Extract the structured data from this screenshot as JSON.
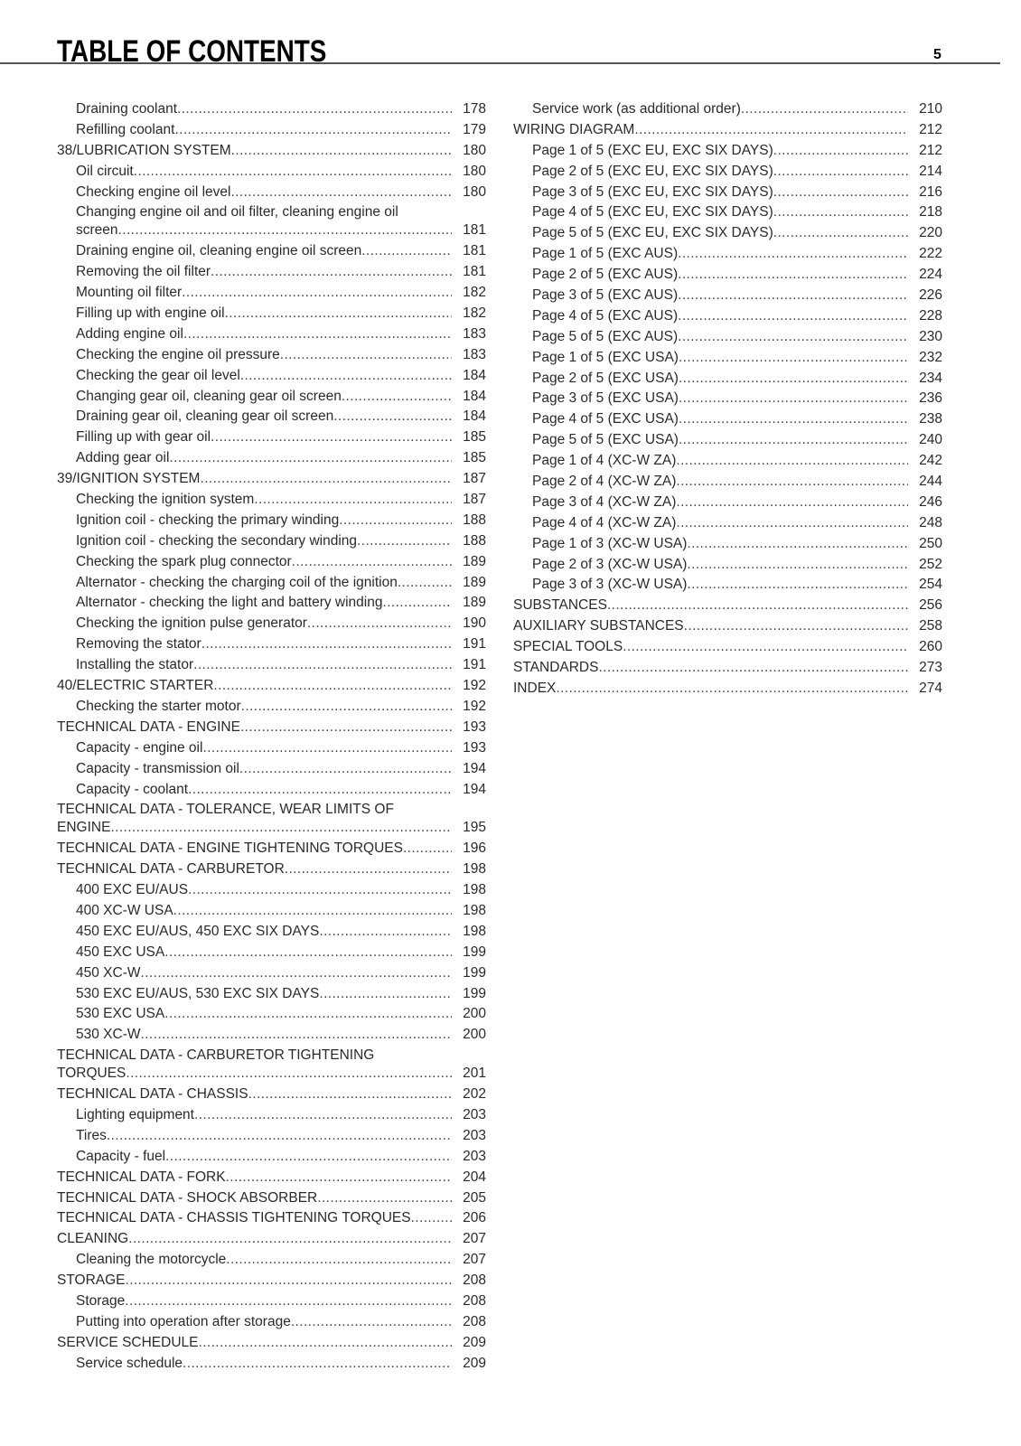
{
  "header": {
    "title": "TABLE OF CONTENTS",
    "page_number": "5"
  },
  "left": [
    {
      "level": 2,
      "title": "Draining coolant",
      "page": "178"
    },
    {
      "level": 2,
      "title": "Refilling coolant",
      "page": "179"
    },
    {
      "level": 1,
      "title": "38/LUBRICATION SYSTEM",
      "page": "180"
    },
    {
      "level": 2,
      "title": "Oil circuit",
      "page": "180"
    },
    {
      "level": 2,
      "title": "Checking engine oil level",
      "page": "180"
    },
    {
      "level": 2,
      "first_line": "Changing engine oil and oil filter, cleaning engine oil",
      "title": "screen",
      "page": "181"
    },
    {
      "level": 2,
      "title": "Draining engine oil, cleaning engine oil screen",
      "page": "181"
    },
    {
      "level": 2,
      "title": "Removing the oil filter",
      "page": "181"
    },
    {
      "level": 2,
      "title": "Mounting oil filter",
      "page": "182"
    },
    {
      "level": 2,
      "title": "Filling up with engine oil",
      "page": "182"
    },
    {
      "level": 2,
      "title": "Adding engine oil",
      "page": "183"
    },
    {
      "level": 2,
      "title": "Checking the engine oil pressure",
      "page": "183"
    },
    {
      "level": 2,
      "title": "Checking the gear oil level",
      "page": "184"
    },
    {
      "level": 2,
      "title": "Changing gear oil, cleaning gear oil screen",
      "page": "184"
    },
    {
      "level": 2,
      "title": "Draining gear oil, cleaning gear oil screen",
      "page": "184"
    },
    {
      "level": 2,
      "title": "Filling up with gear oil",
      "page": "185"
    },
    {
      "level": 2,
      "title": "Adding gear oil",
      "page": "185"
    },
    {
      "level": 1,
      "title": "39/IGNITION SYSTEM",
      "page": "187"
    },
    {
      "level": 2,
      "title": "Checking the ignition system",
      "page": "187"
    },
    {
      "level": 2,
      "title": "Ignition coil - checking the primary winding",
      "page": "188"
    },
    {
      "level": 2,
      "title": "Ignition coil - checking the secondary winding",
      "page": "188"
    },
    {
      "level": 2,
      "title": "Checking the spark plug connector",
      "page": "189"
    },
    {
      "level": 2,
      "title": "Alternator - checking the charging coil of the ignition",
      "page": "189"
    },
    {
      "level": 2,
      "title": "Alternator - checking the light and battery winding",
      "page": "189"
    },
    {
      "level": 2,
      "title": "Checking the ignition pulse generator",
      "page": "190"
    },
    {
      "level": 2,
      "title": "Removing the stator",
      "page": "191"
    },
    {
      "level": 2,
      "title": "Installing the stator",
      "page": "191"
    },
    {
      "level": 1,
      "title": "40/ELECTRIC STARTER",
      "page": "192"
    },
    {
      "level": 2,
      "title": "Checking the starter motor",
      "page": "192"
    },
    {
      "level": 1,
      "title": "TECHNICAL DATA - ENGINE",
      "page": "193"
    },
    {
      "level": 2,
      "title": "Capacity - engine oil",
      "page": "193"
    },
    {
      "level": 2,
      "title": "Capacity - transmission oil",
      "page": "194"
    },
    {
      "level": 2,
      "title": "Capacity - coolant",
      "page": "194"
    },
    {
      "level": 1,
      "first_line": "TECHNICAL DATA - TOLERANCE, WEAR LIMITS OF",
      "title": "ENGINE",
      "page": "195"
    },
    {
      "level": 1,
      "title": "TECHNICAL DATA - ENGINE TIGHTENING TORQUES",
      "page": "196"
    },
    {
      "level": 1,
      "title": "TECHNICAL DATA - CARBURETOR",
      "page": "198"
    },
    {
      "level": 2,
      "title": "400 EXC EU/AUS",
      "page": "198"
    },
    {
      "level": 2,
      "title": "400 XC-W USA",
      "page": "198"
    },
    {
      "level": 2,
      "title": "450 EXC EU/AUS, 450 EXC SIX DAYS",
      "page": "198"
    },
    {
      "level": 2,
      "title": "450 EXC USA",
      "page": "199"
    },
    {
      "level": 2,
      "title": "450 XC-W",
      "page": "199"
    },
    {
      "level": 2,
      "title": "530 EXC EU/AUS, 530 EXC SIX DAYS",
      "page": "199"
    },
    {
      "level": 2,
      "title": "530 EXC USA",
      "page": "200"
    },
    {
      "level": 2,
      "title": "530 XC-W",
      "page": "200"
    },
    {
      "level": 1,
      "first_line": "TECHNICAL DATA - CARBURETOR TIGHTENING",
      "title": "TORQUES",
      "page": "201"
    },
    {
      "level": 1,
      "title": "TECHNICAL DATA - CHASSIS",
      "page": "202"
    },
    {
      "level": 2,
      "title": "Lighting equipment",
      "page": "203"
    },
    {
      "level": 2,
      "title": "Tires",
      "page": "203"
    },
    {
      "level": 2,
      "title": "Capacity - fuel",
      "page": "203"
    },
    {
      "level": 1,
      "title": "TECHNICAL DATA - FORK",
      "page": "204"
    },
    {
      "level": 1,
      "title": "TECHNICAL DATA - SHOCK ABSORBER",
      "page": "205"
    },
    {
      "level": 1,
      "title": "TECHNICAL DATA - CHASSIS TIGHTENING TORQUES",
      "page": "206"
    },
    {
      "level": 1,
      "title": "CLEANING",
      "page": "207"
    },
    {
      "level": 2,
      "title": "Cleaning the motorcycle",
      "page": "207"
    },
    {
      "level": 1,
      "title": "STORAGE",
      "page": "208"
    },
    {
      "level": 2,
      "title": "Storage",
      "page": "208"
    },
    {
      "level": 2,
      "title": "Putting into operation after storage",
      "page": "208"
    },
    {
      "level": 1,
      "title": "SERVICE SCHEDULE",
      "page": "209"
    },
    {
      "level": 2,
      "title": "Service schedule",
      "page": "209"
    }
  ],
  "right": [
    {
      "level": 2,
      "title": "Service work (as additional order)",
      "page": "210"
    },
    {
      "level": 1,
      "title": "WIRING DIAGRAM",
      "page": "212"
    },
    {
      "level": 2,
      "title": "Page 1 of 5 (EXC EU, EXC SIX DAYS)",
      "page": "212"
    },
    {
      "level": 2,
      "title": "Page 2 of 5 (EXC EU, EXC SIX DAYS)",
      "page": "214"
    },
    {
      "level": 2,
      "title": "Page 3 of 5 (EXC EU, EXC SIX DAYS)",
      "page": "216"
    },
    {
      "level": 2,
      "title": "Page 4 of 5 (EXC EU, EXC SIX DAYS)",
      "page": "218"
    },
    {
      "level": 2,
      "title": "Page 5 of 5 (EXC EU, EXC SIX DAYS)",
      "page": "220"
    },
    {
      "level": 2,
      "title": "Page 1 of 5 (EXC AUS)",
      "page": "222"
    },
    {
      "level": 2,
      "title": "Page 2 of 5 (EXC AUS)",
      "page": "224"
    },
    {
      "level": 2,
      "title": "Page 3 of 5 (EXC AUS)",
      "page": "226"
    },
    {
      "level": 2,
      "title": "Page 4 of 5 (EXC AUS)",
      "page": "228"
    },
    {
      "level": 2,
      "title": "Page 5 of 5 (EXC AUS)",
      "page": "230"
    },
    {
      "level": 2,
      "title": "Page 1 of 5 (EXC USA)",
      "page": "232"
    },
    {
      "level": 2,
      "title": "Page 2 of 5 (EXC USA)",
      "page": "234"
    },
    {
      "level": 2,
      "title": "Page 3 of 5 (EXC USA)",
      "page": "236"
    },
    {
      "level": 2,
      "title": "Page 4 of 5 (EXC USA)",
      "page": "238"
    },
    {
      "level": 2,
      "title": "Page 5 of 5 (EXC USA)",
      "page": "240"
    },
    {
      "level": 2,
      "title": "Page 1 of 4 (XC-W ZA)",
      "page": "242"
    },
    {
      "level": 2,
      "title": "Page 2 of 4 (XC-W ZA)",
      "page": "244"
    },
    {
      "level": 2,
      "title": "Page 3 of 4 (XC-W ZA)",
      "page": "246"
    },
    {
      "level": 2,
      "title": "Page 4 of 4 (XC-W ZA)",
      "page": "248"
    },
    {
      "level": 2,
      "title": "Page 1 of 3 (XC-W USA)",
      "page": "250"
    },
    {
      "level": 2,
      "title": "Page 2 of 3 (XC-W USA)",
      "page": "252"
    },
    {
      "level": 2,
      "title": "Page 3 of 3 (XC-W USA)",
      "page": "254"
    },
    {
      "level": 1,
      "title": "SUBSTANCES",
      "page": "256"
    },
    {
      "level": 1,
      "title": "AUXILIARY SUBSTANCES",
      "page": "258"
    },
    {
      "level": 1,
      "title": "SPECIAL TOOLS",
      "page": "260"
    },
    {
      "level": 1,
      "title": "STANDARDS",
      "page": "273"
    },
    {
      "level": 1,
      "title": "INDEX",
      "page": "274"
    }
  ]
}
